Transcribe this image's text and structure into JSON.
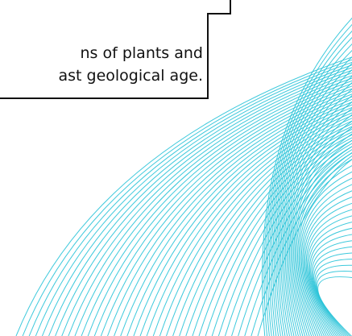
{
  "definition": {
    "line1": "ns of plants and",
    "line2": "ast geological age."
  },
  "decoration": {
    "line_color": "#29c3d8",
    "pattern": "curved-line-bundles"
  }
}
